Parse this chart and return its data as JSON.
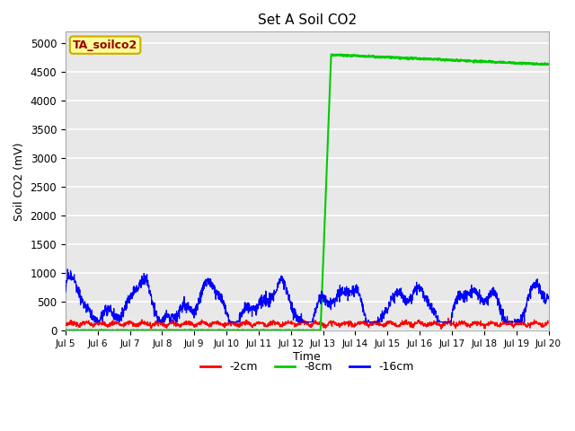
{
  "title": "Set A Soil CO2",
  "ylabel": "Soil CO2 (mV)",
  "xlabel": "Time",
  "xlim": [
    0,
    15
  ],
  "ylim": [
    0,
    5200
  ],
  "yticks": [
    0,
    500,
    1000,
    1500,
    2000,
    2500,
    3000,
    3500,
    4000,
    4500,
    5000
  ],
  "xtick_labels": [
    "Jul 5",
    "Jul 6",
    "Jul 7",
    "Jul 8",
    "Jul 9",
    "Jul 10",
    "Jul 11",
    "Jul 12",
    "Jul 13",
    "Jul 14",
    "Jul 15",
    "Jul 16",
    "Jul 17",
    "Jul 18",
    "Jul 19",
    "Jul 20"
  ],
  "xtick_positions": [
    0,
    1,
    2,
    3,
    4,
    5,
    6,
    7,
    8,
    9,
    10,
    11,
    12,
    13,
    14,
    15
  ],
  "legend_label": "TA_soilco2",
  "line_colors": [
    "#ff0000",
    "#00cc00",
    "#0000ff"
  ],
  "line_labels": [
    "-2cm",
    "-8cm",
    "-16cm"
  ],
  "bg_color": "#e8e8e8",
  "fig_bg": "#ffffff",
  "legend_box_color": "#ffff99",
  "legend_text_color": "#990000",
  "legend_box_edge": "#ccaa00"
}
